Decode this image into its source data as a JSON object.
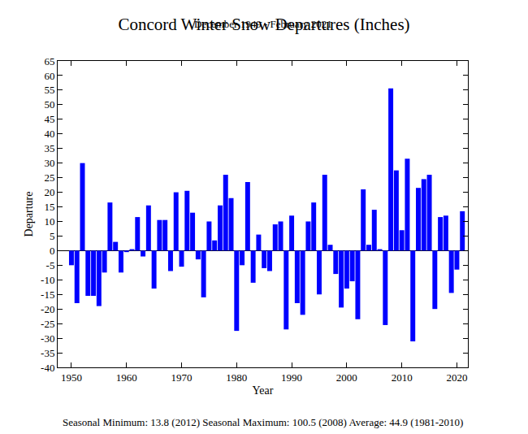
{
  "chart_data": {
    "type": "bar",
    "title": "Concord Winter Snow Departures (Inches)",
    "subtitle": "December 1949 - February 2021",
    "x_label": "Year",
    "y_label": "Departure",
    "annotations": [
      "Seasonal Minimum: 13.8 (2012) Seasonal Maximum: 100.5 (2008) Average: 44.9 (1981-2010)"
    ],
    "x": [
      1950,
      1951,
      1952,
      1953,
      1954,
      1955,
      1956,
      1957,
      1958,
      1959,
      1960,
      1961,
      1962,
      1963,
      1964,
      1965,
      1966,
      1967,
      1968,
      1969,
      1970,
      1971,
      1972,
      1973,
      1974,
      1975,
      1976,
      1977,
      1978,
      1979,
      1980,
      1981,
      1982,
      1983,
      1984,
      1985,
      1986,
      1987,
      1988,
      1989,
      1990,
      1991,
      1992,
      1993,
      1994,
      1995,
      1996,
      1997,
      1998,
      1999,
      2000,
      2001,
      2002,
      2003,
      2004,
      2005,
      2006,
      2007,
      2008,
      2009,
      2010,
      2011,
      2012,
      2013,
      2014,
      2015,
      2016,
      2017,
      2018,
      2019,
      2020,
      2021
    ],
    "values": [
      -5,
      -18,
      30,
      -15.5,
      -15.5,
      -19,
      -7.5,
      16.5,
      3,
      -7.5,
      -0.5,
      0.5,
      11.5,
      -2,
      15.5,
      -13,
      10.5,
      10.5,
      -7,
      20,
      -5.5,
      20.5,
      13,
      -3,
      -16,
      10,
      3.5,
      15.5,
      26,
      18,
      -27.5,
      -5,
      23.5,
      -11,
      5.5,
      -6,
      -7,
      9,
      10,
      -27,
      12,
      -18,
      -22,
      10,
      16.5,
      -15,
      26,
      2,
      -8,
      -19.5,
      -13,
      -10.5,
      -23.5,
      21,
      2,
      14,
      0.5,
      -25.5,
      55.6,
      27.5,
      7,
      31.5,
      -31.1,
      21.5,
      24.5,
      26,
      -20,
      11.5,
      12,
      -14.5,
      -6.5,
      13.5
    ],
    "color": "#0000ff",
    "xlim": [
      1947.5,
      2022
    ],
    "xticks": [
      1950,
      1960,
      1970,
      1980,
      1990,
      2000,
      2010,
      2020
    ],
    "ylim": [
      -40,
      65
    ],
    "yticks": [
      -40,
      -35,
      -30,
      -25,
      -20,
      -15,
      -10,
      -5,
      0,
      5,
      10,
      15,
      20,
      25,
      30,
      35,
      40,
      45,
      50,
      55,
      60,
      65
    ],
    "grid": false
  }
}
